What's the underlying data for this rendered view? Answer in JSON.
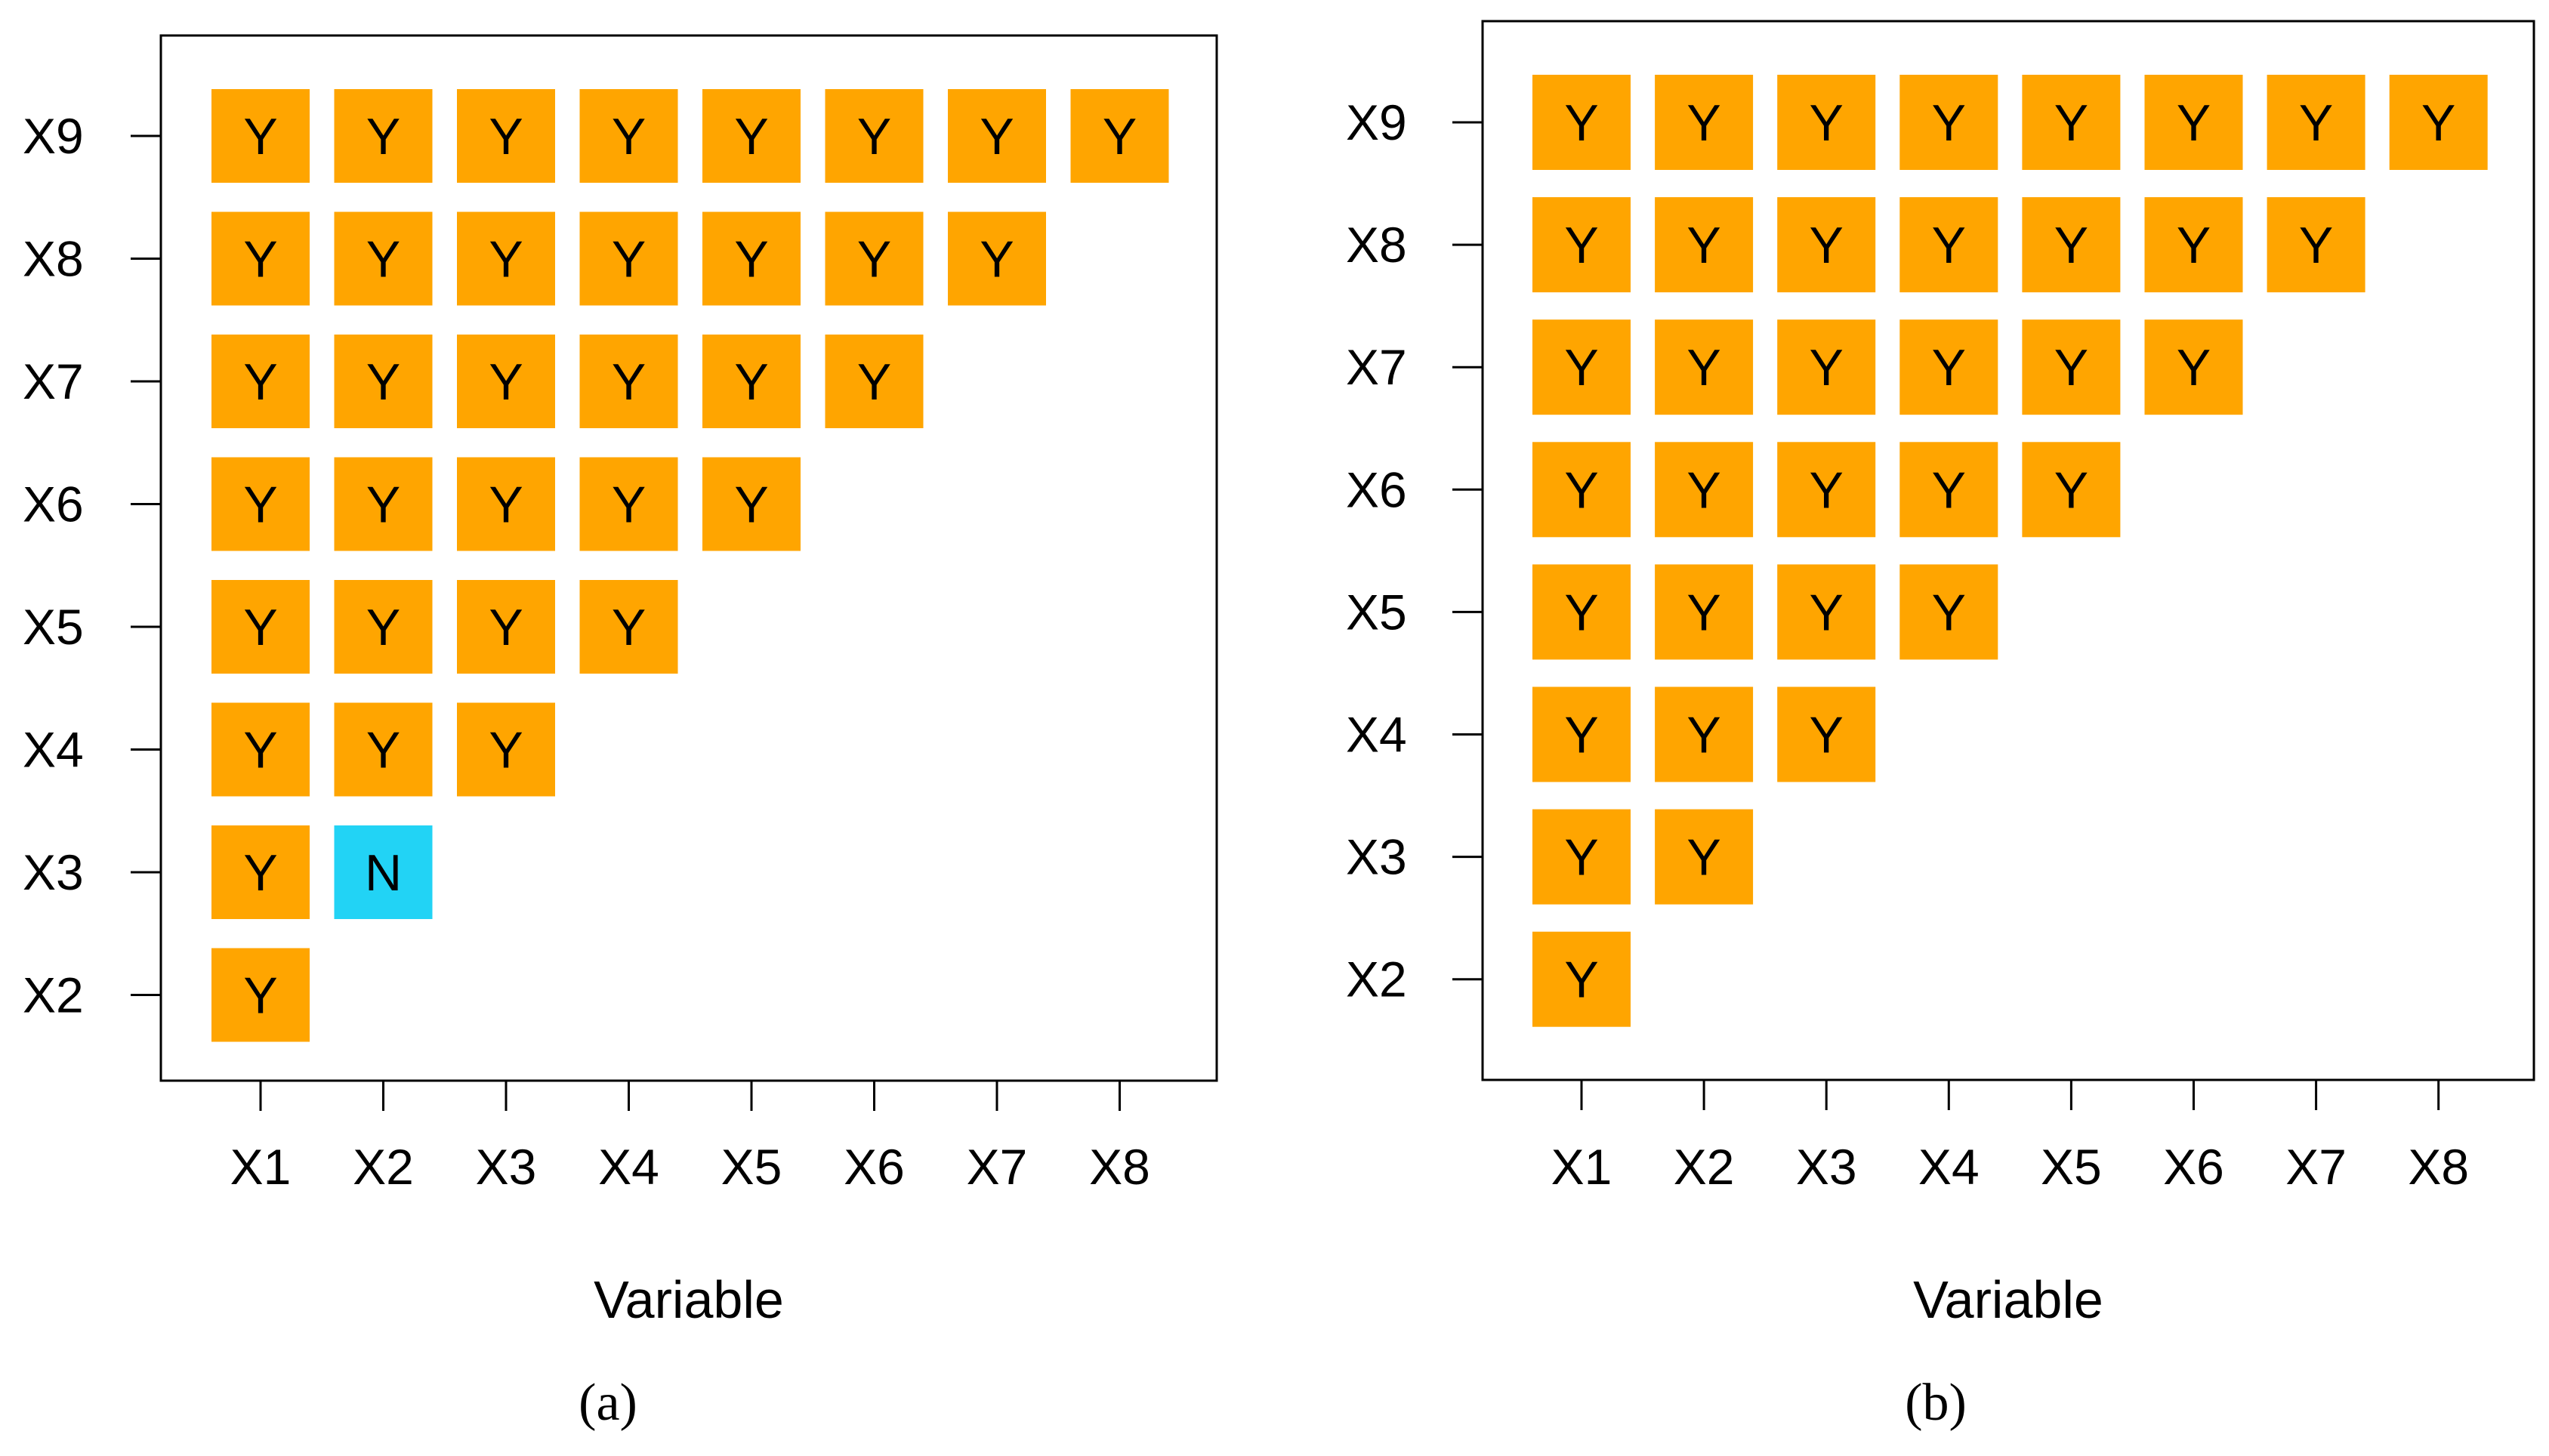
{
  "colors": {
    "yes": "#FFA500",
    "no": "#22D3F5",
    "frame": "#000000",
    "background": "#ffffff"
  },
  "chart_data": [
    {
      "type": "heatmap",
      "panel_label": "(a)",
      "xlabel": "Variable",
      "ylabel": "",
      "x_categories": [
        "X1",
        "X2",
        "X3",
        "X4",
        "X5",
        "X6",
        "X7",
        "X8"
      ],
      "y_categories": [
        "X2",
        "X3",
        "X4",
        "X5",
        "X6",
        "X7",
        "X8",
        "X9"
      ],
      "grid": false,
      "cells": [
        {
          "row": "X9",
          "values": [
            "Y",
            "Y",
            "Y",
            "Y",
            "Y",
            "Y",
            "Y",
            "Y"
          ]
        },
        {
          "row": "X8",
          "values": [
            "Y",
            "Y",
            "Y",
            "Y",
            "Y",
            "Y",
            "Y"
          ]
        },
        {
          "row": "X7",
          "values": [
            "Y",
            "Y",
            "Y",
            "Y",
            "Y",
            "Y"
          ]
        },
        {
          "row": "X6",
          "values": [
            "Y",
            "Y",
            "Y",
            "Y",
            "Y"
          ]
        },
        {
          "row": "X5",
          "values": [
            "Y",
            "Y",
            "Y",
            "Y"
          ]
        },
        {
          "row": "X4",
          "values": [
            "Y",
            "Y",
            "Y"
          ]
        },
        {
          "row": "X3",
          "values": [
            "Y",
            "N"
          ]
        },
        {
          "row": "X2",
          "values": [
            "Y"
          ]
        }
      ]
    },
    {
      "type": "heatmap",
      "panel_label": "(b)",
      "xlabel": "Variable",
      "ylabel": "",
      "x_categories": [
        "X1",
        "X2",
        "X3",
        "X4",
        "X5",
        "X6",
        "X7",
        "X8"
      ],
      "y_categories": [
        "X2",
        "X3",
        "X4",
        "X5",
        "X6",
        "X7",
        "X8",
        "X9"
      ],
      "grid": false,
      "cells": [
        {
          "row": "X9",
          "values": [
            "Y",
            "Y",
            "Y",
            "Y",
            "Y",
            "Y",
            "Y",
            "Y"
          ]
        },
        {
          "row": "X8",
          "values": [
            "Y",
            "Y",
            "Y",
            "Y",
            "Y",
            "Y",
            "Y"
          ]
        },
        {
          "row": "X7",
          "values": [
            "Y",
            "Y",
            "Y",
            "Y",
            "Y",
            "Y"
          ]
        },
        {
          "row": "X6",
          "values": [
            "Y",
            "Y",
            "Y",
            "Y",
            "Y"
          ]
        },
        {
          "row": "X5",
          "values": [
            "Y",
            "Y",
            "Y",
            "Y"
          ]
        },
        {
          "row": "X4",
          "values": [
            "Y",
            "Y",
            "Y"
          ]
        },
        {
          "row": "X3",
          "values": [
            "Y",
            "Y"
          ]
        },
        {
          "row": "X2",
          "values": [
            "Y"
          ]
        }
      ]
    }
  ]
}
